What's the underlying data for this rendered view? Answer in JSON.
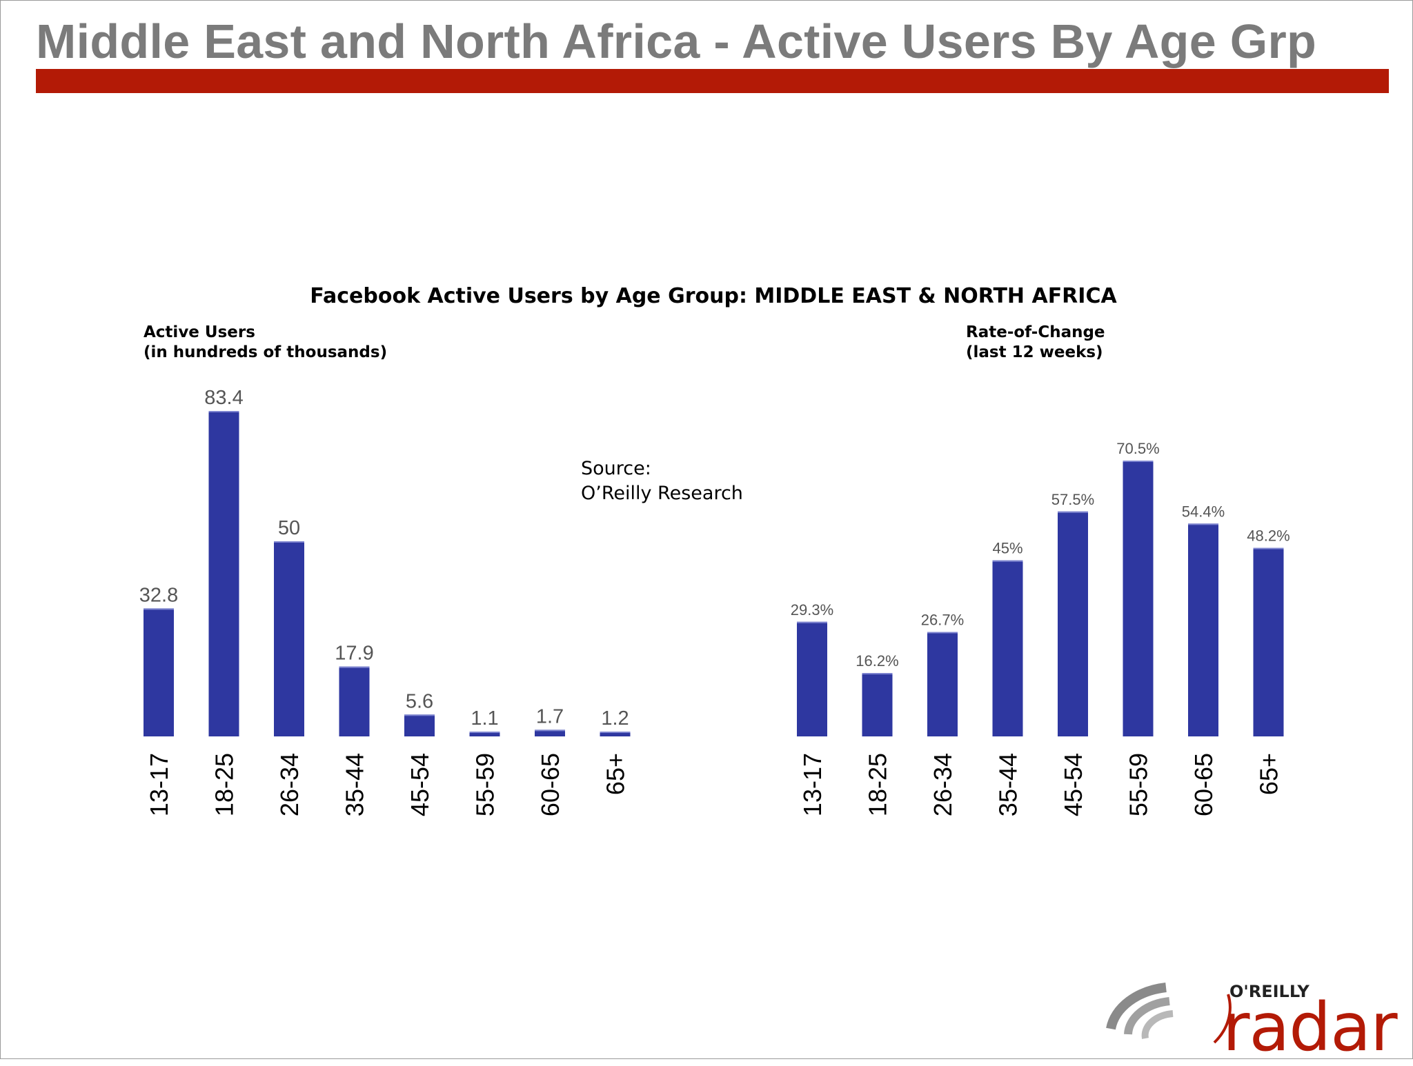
{
  "slide": {
    "title": "Middle East and North Africa - Active Users By Age Grp"
  },
  "chart_title": "Facebook Active Users by Age Group: MIDDLE EAST & NORTH AFRICA",
  "left_panel": {
    "label_line1": "Active Users",
    "label_line2": "(in hundreds of thousands)"
  },
  "right_panel": {
    "label_line1": "Rate-of-Change",
    "label_line2": "(last 12 weeks)"
  },
  "source": {
    "line1": "Source:",
    "line2": "O’Reilly Research"
  },
  "logo": {
    "brand": "O'REILLY",
    "word": "radar"
  },
  "colors": {
    "bar": "#2e37a0",
    "title_gray": "#7b7b7b",
    "rule_red": "#b31a06",
    "value_label": "#555555",
    "axis_label": "#000000"
  },
  "chart_data": [
    {
      "type": "bar",
      "title": "Active Users (in hundreds of thousands)",
      "categories": [
        "13-17",
        "18-25",
        "26-34",
        "35-44",
        "45-54",
        "55-59",
        "60-65",
        "65+"
      ],
      "values": [
        32.8,
        83.4,
        50,
        17.9,
        5.6,
        1.1,
        1.7,
        1.2
      ],
      "value_labels": [
        "32.8",
        "83.4",
        "50",
        "17.9",
        "5.6",
        "1.1",
        "1.7",
        "1.2"
      ],
      "xlabel": "",
      "ylabel": "Active Users (in hundreds of thousands)",
      "ylim": [
        0,
        83.4
      ],
      "grid": false
    },
    {
      "type": "bar",
      "title": "Rate-of-Change (last 12 weeks)",
      "categories": [
        "13-17",
        "18-25",
        "26-34",
        "35-44",
        "45-54",
        "55-59",
        "60-65",
        "65+"
      ],
      "values": [
        29.3,
        16.2,
        26.7,
        45,
        57.5,
        70.5,
        54.4,
        48.2
      ],
      "value_labels": [
        "29.3%",
        "16.2%",
        "26.7%",
        "45%",
        "57.5%",
        "70.5%",
        "54.4%",
        "48.2%"
      ],
      "xlabel": "",
      "ylabel": "Rate-of-Change (last 12 weeks)",
      "ylim": [
        0,
        70.5
      ],
      "grid": false
    }
  ]
}
